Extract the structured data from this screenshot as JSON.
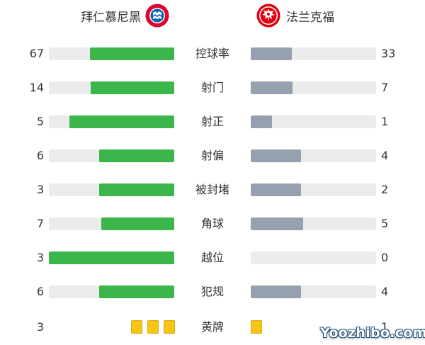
{
  "teams": {
    "home": {
      "name": "拜仁慕尼黑",
      "logo": "bayern-munich-logo",
      "logo_text": "FC BAYERN MÜNCHEN"
    },
    "away": {
      "name": "法兰克福",
      "logo": "eintracht-frankfurt-eagle-logo"
    }
  },
  "colors": {
    "home_bar": "#3bb64b",
    "away_bar": "#97a0b0",
    "track": "#ebebeb",
    "yellow_card": "#f6c516"
  },
  "stats": [
    {
      "label": "控球率",
      "home": "67",
      "away": "33",
      "home_value": 67,
      "away_value": 33,
      "max": 100
    },
    {
      "label": "射门",
      "home": "14",
      "away": "7",
      "home_value": 14,
      "away_value": 7,
      "max": 21
    },
    {
      "label": "射正",
      "home": "5",
      "away": "1",
      "home_value": 5,
      "away_value": 1,
      "max": 6
    },
    {
      "label": "射偏",
      "home": "6",
      "away": "4",
      "home_value": 6,
      "away_value": 4,
      "max": 10
    },
    {
      "label": "被封堵",
      "home": "3",
      "away": "2",
      "home_value": 3,
      "away_value": 2,
      "max": 5
    },
    {
      "label": "角球",
      "home": "7",
      "away": "5",
      "home_value": 7,
      "away_value": 5,
      "max": 12
    },
    {
      "label": "越位",
      "home": "3",
      "away": "0",
      "home_value": 3,
      "away_value": 0,
      "max": 3
    },
    {
      "label": "犯规",
      "home": "6",
      "away": "4",
      "home_value": 6,
      "away_value": 4,
      "max": 10
    }
  ],
  "yellow_cards": {
    "label": "黄牌",
    "home": "3",
    "away": "1",
    "home_count": 3,
    "away_count": 1
  },
  "watermark": "Yoozhibo.com"
}
